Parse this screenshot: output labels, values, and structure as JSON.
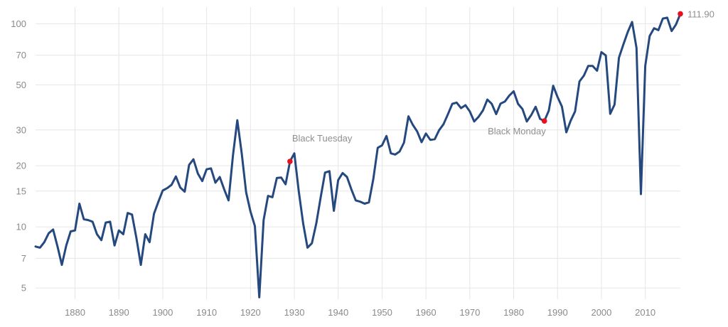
{
  "chart_data": {
    "type": "line",
    "title": "",
    "xlabel": "",
    "ylabel": "",
    "y_scale": "log",
    "xlim": [
      1871,
      2018
    ],
    "ylim": [
      4.4,
      115
    ],
    "grid": "both",
    "colors": {
      "line": "#25497e",
      "marker": "#e8111c",
      "grid": "#e6e6e6",
      "tick_text": "#8a8a8a",
      "annotation_text": "#8f8f8f"
    },
    "x_ticks": [
      {
        "value": 1880,
        "label": "1880"
      },
      {
        "value": 1890,
        "label": "1890"
      },
      {
        "value": 1900,
        "label": "1900"
      },
      {
        "value": 1910,
        "label": "1910"
      },
      {
        "value": 1920,
        "label": "1920"
      },
      {
        "value": 1930,
        "label": "1930"
      },
      {
        "value": 1940,
        "label": "1940"
      },
      {
        "value": 1950,
        "label": "1950"
      },
      {
        "value": 1960,
        "label": "1960"
      },
      {
        "value": 1970,
        "label": "1970"
      },
      {
        "value": 1980,
        "label": "1980"
      },
      {
        "value": 1990,
        "label": "1990"
      },
      {
        "value": 2000,
        "label": "2000"
      },
      {
        "value": 2010,
        "label": "2010"
      }
    ],
    "y_ticks": [
      {
        "value": 5,
        "label": "5"
      },
      {
        "value": 7,
        "label": "7"
      },
      {
        "value": 10,
        "label": "10"
      },
      {
        "value": 15,
        "label": "15"
      },
      {
        "value": 20,
        "label": "20"
      },
      {
        "value": 30,
        "label": "30"
      },
      {
        "value": 50,
        "label": "50"
      },
      {
        "value": 70,
        "label": "70"
      },
      {
        "value": 100,
        "label": "100"
      }
    ],
    "series": [
      {
        "x": [
          1871,
          1872,
          1873,
          1874,
          1875,
          1876,
          1877,
          1878,
          1879,
          1880,
          1881,
          1882,
          1883,
          1884,
          1885,
          1886,
          1887,
          1888,
          1889,
          1890,
          1891,
          1892,
          1893,
          1894,
          1895,
          1896,
          1897,
          1898,
          1899,
          1900,
          1901,
          1902,
          1903,
          1904,
          1905,
          1906,
          1907,
          1908,
          1909,
          1910,
          1911,
          1912,
          1913,
          1914,
          1915,
          1916,
          1917,
          1918,
          1919,
          1920,
          1921,
          1922,
          1923,
          1924,
          1925,
          1926,
          1927,
          1928,
          1929,
          1930,
          1931,
          1932,
          1933,
          1934,
          1935,
          1936,
          1937,
          1938,
          1939,
          1940,
          1941,
          1942,
          1943,
          1944,
          1945,
          1946,
          1947,
          1948,
          1949,
          1950,
          1951,
          1952,
          1953,
          1954,
          1955,
          1956,
          1957,
          1958,
          1959,
          1960,
          1961,
          1962,
          1963,
          1964,
          1965,
          1966,
          1967,
          1968,
          1969,
          1970,
          1971,
          1972,
          1973,
          1974,
          1975,
          1976,
          1977,
          1978,
          1979,
          1980,
          1981,
          1982,
          1983,
          1984,
          1985,
          1986,
          1987,
          1988,
          1989,
          1990,
          1991,
          1992,
          1993,
          1994,
          1995,
          1996,
          1997,
          1998,
          1999,
          2000,
          2001,
          2002,
          2003,
          2004,
          2005,
          2006,
          2007,
          2008,
          2009,
          2010,
          2011,
          2012,
          2013,
          2014,
          2015,
          2016,
          2017,
          2018
        ],
        "y": [
          8.0,
          7.9,
          8.4,
          9.3,
          9.7,
          8.0,
          6.5,
          8.1,
          9.5,
          9.6,
          13.0,
          10.9,
          10.8,
          10.6,
          9.2,
          8.6,
          10.5,
          10.6,
          8.1,
          9.6,
          9.2,
          11.7,
          11.5,
          8.8,
          6.5,
          9.2,
          8.4,
          11.6,
          13.3,
          15.1,
          15.5,
          16.1,
          17.7,
          15.6,
          14.9,
          20.2,
          21.5,
          18.3,
          16.8,
          19.2,
          19.4,
          16.5,
          17.6,
          15.3,
          13.5,
          22.5,
          33.5,
          23.0,
          14.8,
          11.9,
          10.1,
          4.5,
          10.8,
          14.2,
          14.0,
          17.4,
          17.5,
          16.2,
          21.0,
          23.0,
          15.0,
          10.4,
          7.9,
          8.3,
          10.4,
          14.0,
          18.5,
          18.8,
          12.0,
          17.0,
          18.4,
          17.6,
          15.3,
          13.5,
          13.3,
          13.0,
          13.2,
          17.2,
          24.5,
          25.2,
          28.0,
          23.0,
          22.7,
          23.5,
          26.0,
          35.0,
          31.8,
          29.5,
          26.1,
          28.8,
          26.8,
          27.0,
          29.9,
          32.0,
          35.8,
          40.3,
          40.9,
          38.4,
          39.7,
          37.0,
          33.0,
          34.8,
          37.4,
          42.3,
          40.3,
          35.9,
          40.4,
          41.4,
          44.3,
          46.5,
          40.3,
          38.0,
          33.0,
          35.5,
          39.0,
          34.0,
          33.2,
          37.3,
          49.5,
          43.6,
          39.1,
          29.2,
          33.3,
          37.0,
          52.0,
          55.5,
          62.0,
          62.0,
          58.7,
          72.5,
          69.8,
          36.0,
          40.0,
          68.0,
          79.0,
          91.0,
          102.0,
          76.0,
          14.5,
          62.0,
          87.0,
          95.0,
          93.0,
          106.0,
          107.0,
          92.0,
          99.0,
          111.9
        ]
      }
    ],
    "annotations": [
      {
        "x": 1929,
        "y": 21.0,
        "text": "Black Tuesday",
        "marker": true
      },
      {
        "x": 1987,
        "y": 33.2,
        "text": "Black Monday",
        "marker": true
      },
      {
        "x": 2018,
        "y": 111.9,
        "text": "111.90",
        "marker": true
      }
    ]
  }
}
